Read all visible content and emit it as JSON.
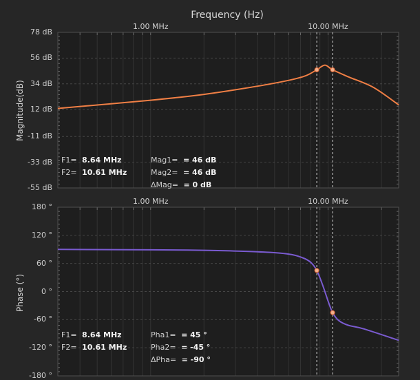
{
  "chart_data": [
    {
      "type": "line",
      "title": "Frequency (Hz)",
      "ylabel": "Magnitude(dB)",
      "x_scale": "log",
      "xlim": [
        300000,
        25000000
      ],
      "ylim": [
        -55,
        78
      ],
      "x_ticks": [
        1000000,
        10000000
      ],
      "x_tick_labels": [
        "1.00 MHz",
        "10.00 MHz"
      ],
      "y_ticks": [
        78,
        56,
        34,
        12,
        -11,
        -33,
        -55
      ],
      "y_tick_labels": [
        "78 dB",
        "56 dB",
        "34 dB",
        "12 dB",
        "-11 dB",
        "-33 dB",
        "-55 dB"
      ],
      "grid": true,
      "series": [
        {
          "color": "#f07f45",
          "x": [
            300000,
            1000000,
            2000000,
            4000000,
            6000000,
            7500000,
            8640000,
            9600000,
            10610000,
            13000000,
            18000000,
            25000000
          ],
          "y": [
            13,
            20,
            25,
            32,
            37,
            41,
            46,
            50,
            46,
            40,
            31,
            16
          ]
        }
      ],
      "markers": [
        {
          "x": 8640000,
          "y": 46
        },
        {
          "x": 10610000,
          "y": 46
        }
      ],
      "cursors": [
        8640000,
        10610000
      ],
      "readout": {
        "f1_label": "F1=",
        "f1_value": "8.64 MHz",
        "f2_label": "F2=",
        "f2_value": "10.61 MHz",
        "v1_label": "Mag1=",
        "v1_value": "= 46 dB",
        "v2_label": "Mag2=",
        "v2_value": "= 46 dB",
        "dv_label": "ΔMag=",
        "dv_value": "= 0 dB"
      }
    },
    {
      "type": "line",
      "ylabel": "Phase (°)",
      "x_scale": "log",
      "xlim": [
        300000,
        25000000
      ],
      "ylim": [
        -180,
        180
      ],
      "x_ticks": [
        1000000,
        10000000
      ],
      "x_tick_labels": [
        "1.00 MHz",
        "10.00 MHz"
      ],
      "y_ticks": [
        180,
        120,
        60,
        0,
        -60,
        -120,
        -180
      ],
      "y_tick_labels": [
        "180 °",
        "120 °",
        "60 °",
        "0 °",
        "-60 °",
        "-120 °",
        "-180 °"
      ],
      "grid": true,
      "series": [
        {
          "color": "#7a5bd0",
          "x": [
            300000,
            1000000,
            2000000,
            4000000,
            6000000,
            7200000,
            8000000,
            8640000,
            9300000,
            10000000,
            10610000,
            11500000,
            13000000,
            16000000,
            25000000
          ],
          "y": [
            90,
            89,
            88,
            85,
            80,
            72,
            62,
            45,
            15,
            -20,
            -45,
            -62,
            -72,
            -80,
            -104
          ]
        }
      ],
      "markers": [
        {
          "x": 8640000,
          "y": 45
        },
        {
          "x": 10610000,
          "y": -45
        }
      ],
      "cursors": [
        8640000,
        10610000
      ],
      "readout": {
        "f1_label": "F1=",
        "f1_value": "8.64 MHz",
        "f2_label": "F2=",
        "f2_value": "10.61 MHz",
        "v1_label": "Pha1=",
        "v1_value": "= 45 °",
        "v2_label": "Pha2=",
        "v2_value": "= -45 °",
        "dv_label": "ΔPha=",
        "dv_value": "= -90 °"
      }
    }
  ]
}
